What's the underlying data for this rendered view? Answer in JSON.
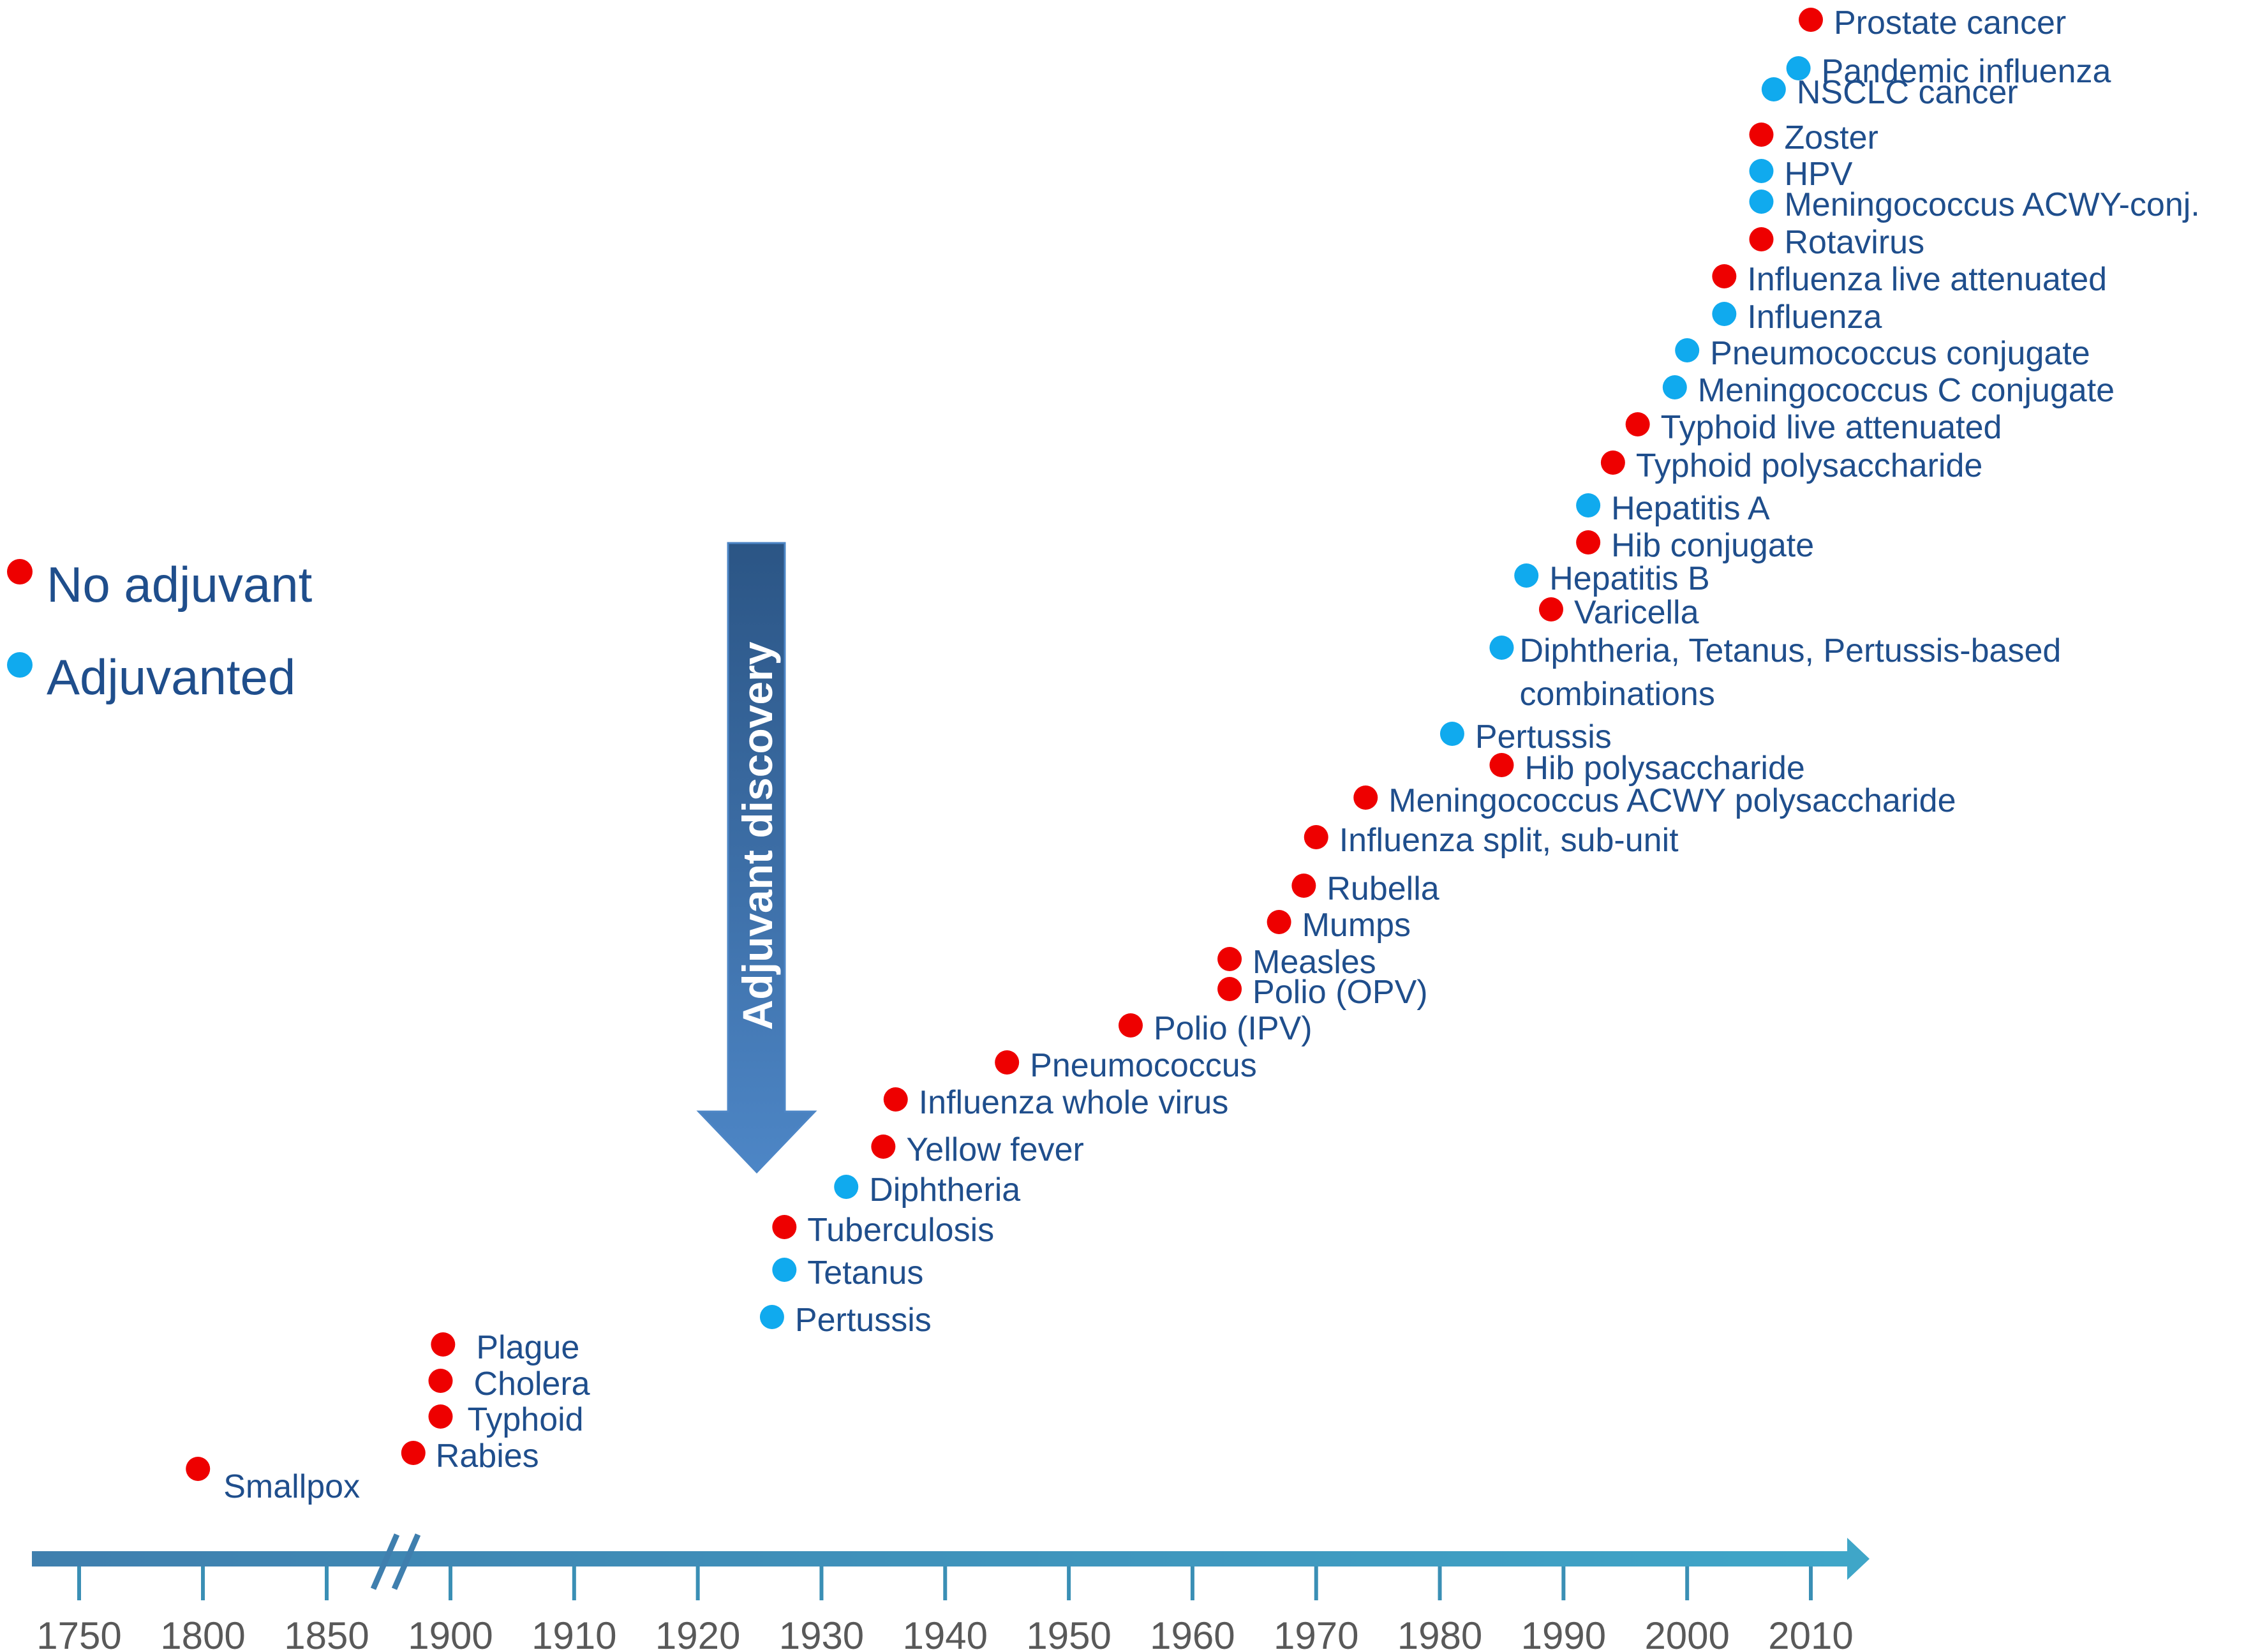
{
  "colors": {
    "no_adjuvant": "#ee0000",
    "adjuvanted": "#10aaee",
    "label_text": "#1f4e8c",
    "axis": "#3a8fb5",
    "arrow_dark": "#2b5585",
    "arrow_light": "#4d86c6",
    "tick_text": "#595959"
  },
  "legend": [
    {
      "group": "no_adjuvant",
      "label": "No adjuvant"
    },
    {
      "group": "adjuvanted",
      "label": "Adjuvanted"
    }
  ],
  "discovery_arrow": {
    "label": "Adjuvant discovery",
    "year": 1925
  },
  "chart_data": {
    "type": "scatter",
    "title": "",
    "xlabel": "",
    "ylabel": "",
    "grid": false,
    "legend_position": "left",
    "x_ticks": [
      "1750",
      "1800",
      "1850",
      "1900",
      "1910",
      "1920",
      "1930",
      "1940",
      "1950",
      "1960",
      "1970",
      "1980",
      "1990",
      "2000",
      "2010"
    ],
    "axis_break": "between 1850 and 1900",
    "series": [
      {
        "name": "No adjuvant",
        "group": "no_adjuvant",
        "points": [
          {
            "label": "Smallpox",
            "year": 1798
          },
          {
            "label": "Rabies",
            "year": 1885
          },
          {
            "label": "Typhoid",
            "year": 1896
          },
          {
            "label": "Cholera",
            "year": 1896
          },
          {
            "label": "Plague",
            "year": 1897
          },
          {
            "label": "Tuberculosis",
            "year": 1927
          },
          {
            "label": "Yellow fever",
            "year": 1935
          },
          {
            "label": "Influenza whole virus",
            "year": 1936
          },
          {
            "label": "Pneumococcus",
            "year": 1945
          },
          {
            "label": "Polio (IPV)",
            "year": 1955
          },
          {
            "label": "Polio (OPV)",
            "year": 1963
          },
          {
            "label": "Measles",
            "year": 1963
          },
          {
            "label": "Mumps",
            "year": 1967
          },
          {
            "label": "Rubella",
            "year": 1969
          },
          {
            "label": "Influenza split, sub-unit",
            "year": 1970
          },
          {
            "label": "Meningococcus ACWY polysaccharide",
            "year": 1974
          },
          {
            "label": "Hib polysaccharide",
            "year": 1985
          },
          {
            "label": "Varicella",
            "year": 1989
          },
          {
            "label": "Hib conjugate",
            "year": 1992
          },
          {
            "label": "Typhoid polysaccharide",
            "year": 1994
          },
          {
            "label": "Typhoid live attenuated",
            "year": 1996
          },
          {
            "label": "Influenza live attenuated",
            "year": 2003
          },
          {
            "label": "Rotavirus",
            "year": 2006
          },
          {
            "label": "Zoster",
            "year": 2006
          },
          {
            "label": "Prostate cancer",
            "year": 2010
          }
        ]
      },
      {
        "name": "Adjuvanted",
        "group": "adjuvanted",
        "points": [
          {
            "label": "Pertussis",
            "year": 1926
          },
          {
            "label": "Tetanus",
            "year": 1927
          },
          {
            "label": "Diphtheria",
            "year": 1932
          },
          {
            "label": "Pertussis",
            "year": 1981
          },
          {
            "label": "Diphtheria, Tetanus, Pertussis-based combinations",
            "year": 1985
          },
          {
            "label": "Hepatitis B",
            "year": 1987
          },
          {
            "label": "Hepatitis A",
            "year": 1992
          },
          {
            "label": "Meningococcus C conjugate",
            "year": 1999
          },
          {
            "label": "Pneumococcus conjugate",
            "year": 2000
          },
          {
            "label": "Influenza",
            "year": 2003
          },
          {
            "label": "Meningococcus ACWY-conj.",
            "year": 2006
          },
          {
            "label": "HPV",
            "year": 2006
          },
          {
            "label": "NSCLC cancer",
            "year": 2007
          },
          {
            "label": "Pandemic influenza",
            "year": 2009
          }
        ]
      }
    ]
  }
}
